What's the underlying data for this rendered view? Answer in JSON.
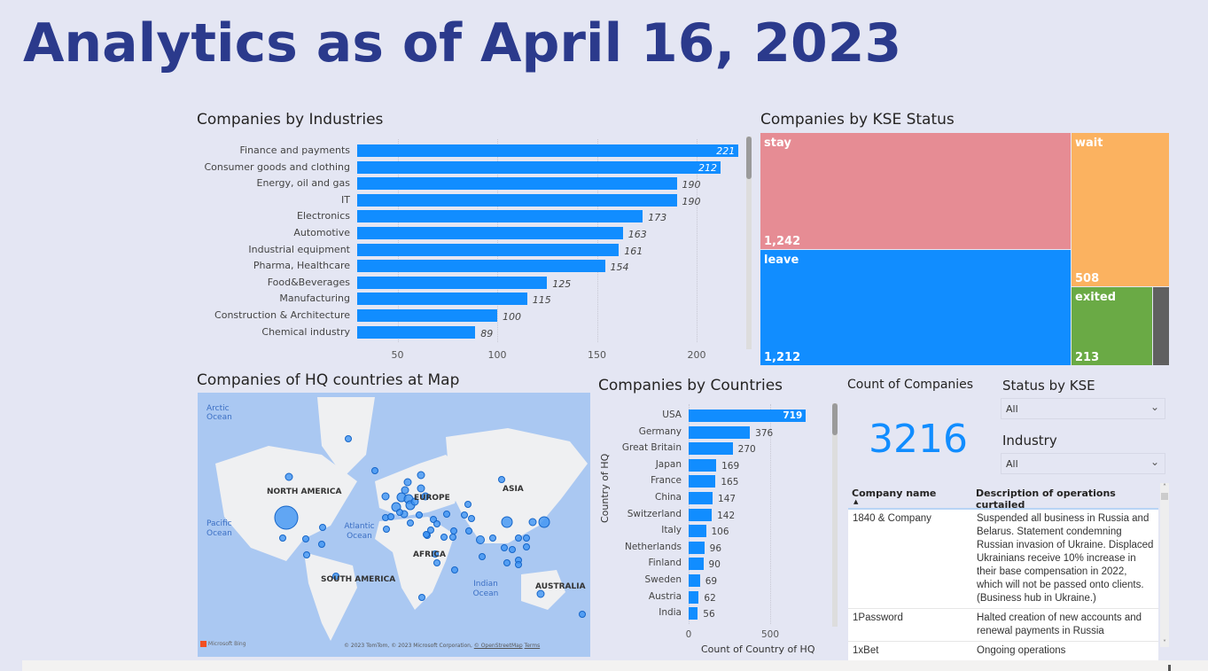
{
  "title": "Analytics as of April 16, 2023",
  "colors": {
    "bar": "#118DFF",
    "stay": "#E68C94",
    "leave": "#118DFF",
    "wait": "#FBB260",
    "exited": "#6AAA45",
    "other": "#606060",
    "title": "#2B3A8C",
    "kpi": "#118DFF"
  },
  "industries": {
    "title": "Companies by Industries",
    "chart_data": {
      "type": "bar",
      "orientation": "horizontal",
      "categories": [
        "Finance and payments",
        "Consumer goods and clothing",
        "Energy, oil and gas",
        "IT",
        "Electronics",
        "Automotive",
        "Industrial equipment",
        "Pharma, Healthcare",
        "Food&Beverages",
        "Manufacturing",
        "Construction & Architecture",
        "Chemical industry"
      ],
      "values": [
        221,
        212,
        190,
        190,
        173,
        163,
        161,
        154,
        125,
        115,
        100,
        89
      ],
      "xticks": [
        "50",
        "100",
        "150",
        "200"
      ],
      "xlim": [
        30,
        225
      ],
      "grid": true
    }
  },
  "kse": {
    "title": "Companies by KSE Status",
    "chart_data": {
      "type": "treemap",
      "items": [
        {
          "name": "stay",
          "value": 1242,
          "label": "1,242"
        },
        {
          "name": "leave",
          "value": 1212,
          "label": "1,212"
        },
        {
          "name": "wait",
          "value": 508,
          "label": "508"
        },
        {
          "name": "exited",
          "value": 213,
          "label": "213"
        }
      ]
    }
  },
  "map": {
    "title": "Companies of HQ countries at Map",
    "labels": {
      "arctic": "Arctic Ocean",
      "pacific": "Pacific Ocean",
      "atlantic": "Atlantic Ocean",
      "indian": "Indian Ocean",
      "na": "NORTH AMERICA",
      "sa": "SOUTH AMERICA",
      "europe": "EUROPE",
      "africa": "AFRICA",
      "asia": "ASIA",
      "australia": "AUSTRALIA"
    },
    "logo": "Microsoft Bing",
    "credits": "© 2023 TomTom, © 2023 Microsoft Corporation,",
    "osm": "© OpenStreetMap",
    "terms": "Terms"
  },
  "countries": {
    "title": "Companies by Countries",
    "chart_data": {
      "type": "bar",
      "orientation": "horizontal",
      "categories": [
        "USA",
        "Germany",
        "Great Britain",
        "Japan",
        "France",
        "China",
        "Switzerland",
        "Italy",
        "Netherlands",
        "Finland",
        "Sweden",
        "Austria",
        "India"
      ],
      "values": [
        719,
        376,
        270,
        169,
        165,
        147,
        142,
        106,
        96,
        90,
        69,
        62,
        56
      ],
      "xlabel": "Count of Country of HQ",
      "ylabel": "Country of HQ",
      "xticks": [
        "0",
        "500"
      ],
      "xlim": [
        0,
        750
      ],
      "grid": true
    }
  },
  "kpi": {
    "label": "Count of Companies",
    "value": "3216"
  },
  "slicers": [
    {
      "label": "Status by KSE",
      "value": "All"
    },
    {
      "label": "Industry",
      "value": "All"
    }
  ],
  "table": {
    "headers": [
      "Company name",
      "Description of operations curtailed"
    ],
    "rows": [
      [
        "1840 & Company",
        "Suspended all business in Russia and Belarus. Statement condemning Russian invasion of Ukraine. Displaced Ukrainians receive 10% increase in their base compensation in 2022, which will not be passed onto clients. (Business hub in Ukraine.)"
      ],
      [
        "1Password",
        "Halted creation of new accounts and renewal payments in Russia"
      ],
      [
        "1xBet",
        "Ongoing operations"
      ]
    ]
  }
}
